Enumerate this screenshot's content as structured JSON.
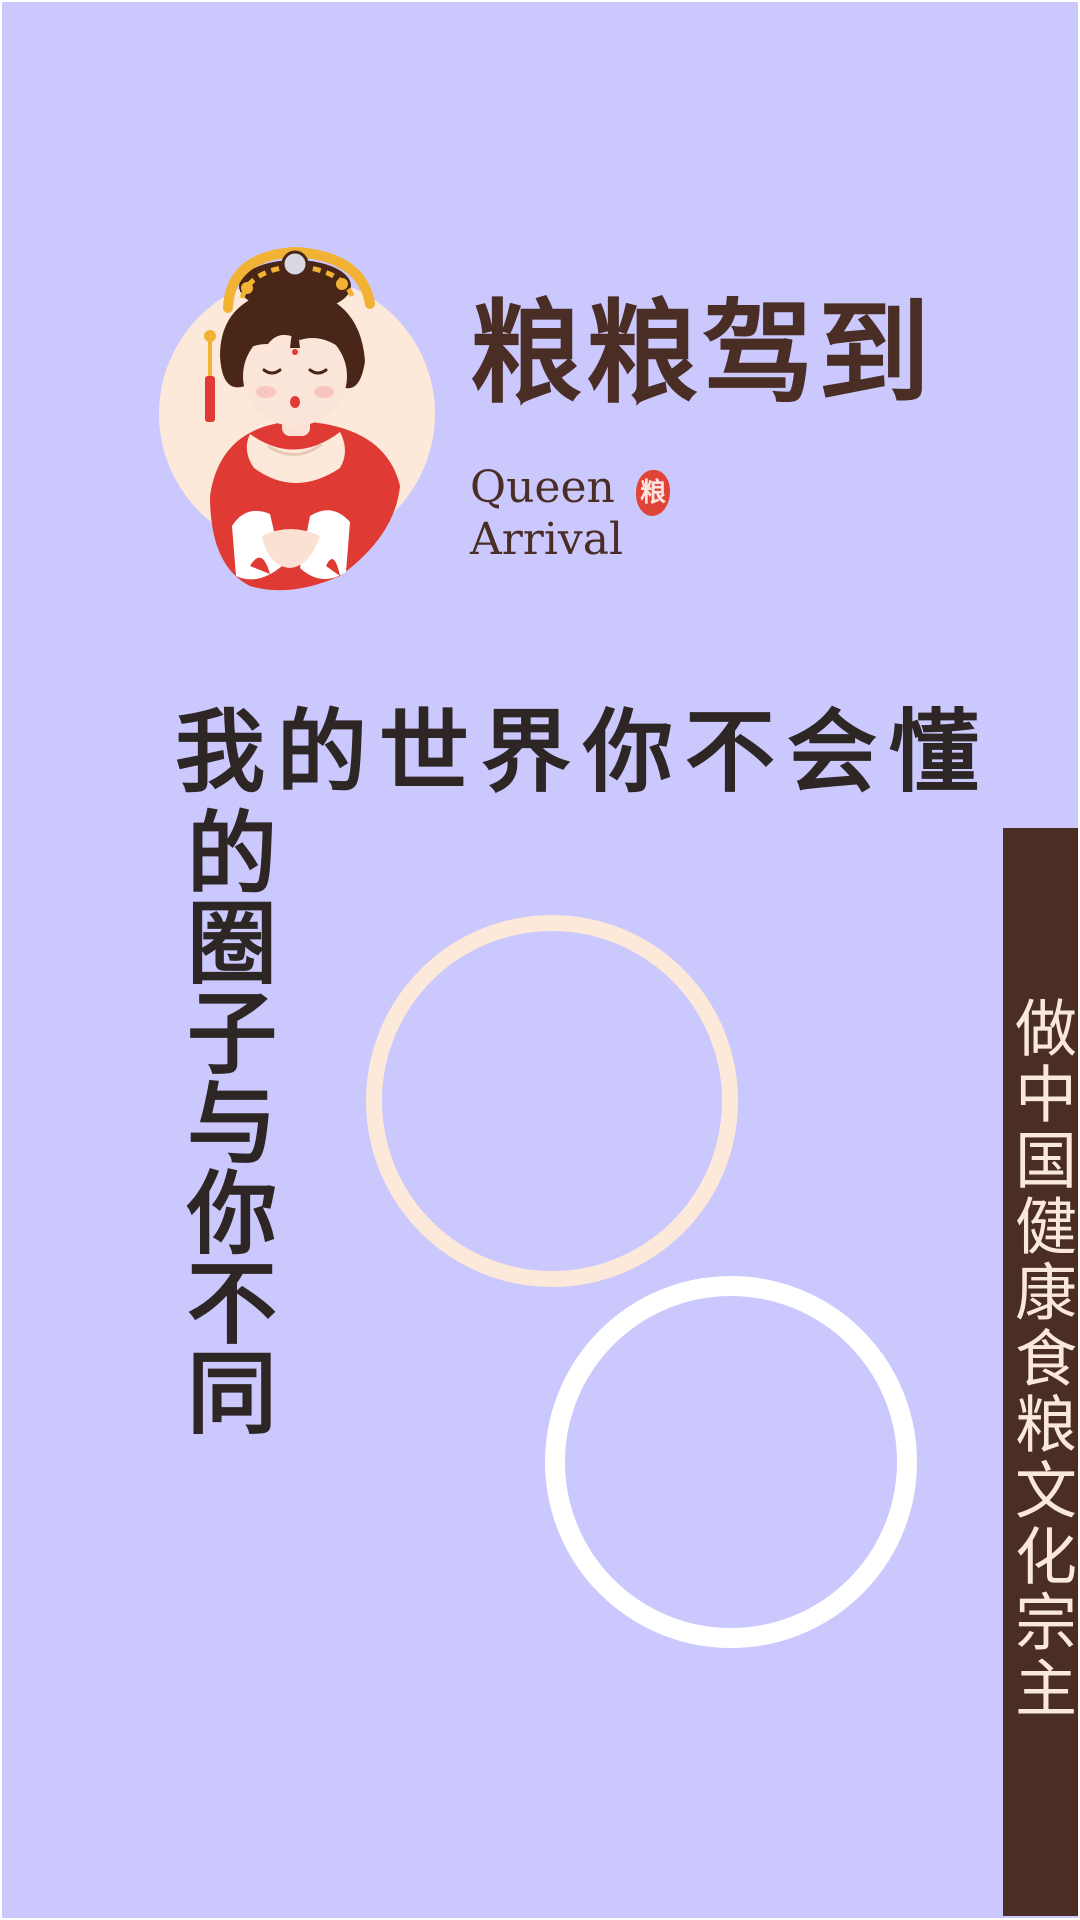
{
  "brand": {
    "name_cn": "粮粮驾到",
    "name_en_line1": "Queen",
    "name_en_line2": "Arrival",
    "seal_char": "粮"
  },
  "headline": {
    "line1": "我的世界你不会懂",
    "column": "的圈子与你不同"
  },
  "banner": {
    "text": "做中国健康食粮文化宗主"
  },
  "icons": {
    "mascot": "queen-mascot-icon",
    "seal": "red-seal-icon"
  },
  "colors": {
    "background": "#cac8fd",
    "brand_brown": "#4a2e26",
    "headline": "#2e2624",
    "cream_ring": "#fde9d9",
    "white_ring": "#ffffff",
    "banner_bg": "#4a2e24",
    "banner_text": "#fbe8dc",
    "robe_red": "#e03a34",
    "gold": "#f2b233"
  }
}
